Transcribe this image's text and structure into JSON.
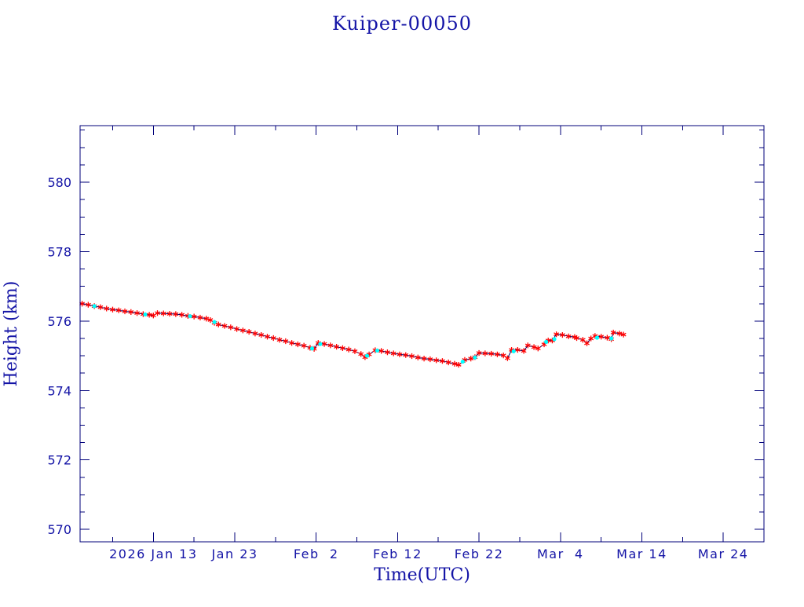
{
  "chart_data": {
    "type": "line",
    "title": "Kuiper-00050",
    "xlabel": "Time(UTC)",
    "ylabel": "Height (km)",
    "xlim": [
      "2026-01-04",
      "2026-03-29"
    ],
    "ylim": [
      569.64,
      581.63
    ],
    "xticks": [
      "2026-01-13",
      "2026-01-23",
      "2026-02-02",
      "2026-02-12",
      "2026-02-22",
      "2026-03-04",
      "2026-03-14",
      "2026-03-24"
    ],
    "xtick_labels": [
      "2026 Jan 13",
      "Jan 23",
      "Feb  2",
      "Feb 12",
      "Feb 22",
      "Mar  4",
      "Mar 14",
      "Mar 24"
    ],
    "yticks": [
      570,
      572,
      574,
      576,
      578,
      580
    ],
    "grid": false,
    "series": [
      {
        "marker": "asterisk",
        "color": "#ff0000",
        "line_color": "#000066",
        "x": [
          "2026-01-04T06:00",
          "2026-01-05T00:00",
          "2026-01-05T18:00",
          "2026-01-06T12:00",
          "2026-01-07T06:00",
          "2026-01-08T00:00",
          "2026-01-08T18:00",
          "2026-01-09T12:00",
          "2026-01-10T06:00",
          "2026-01-11T00:00",
          "2026-01-11T18:00",
          "2026-01-12T12:00",
          "2026-01-13T00:00",
          "2026-01-13T12:00",
          "2026-01-14T06:00",
          "2026-01-15T00:00",
          "2026-01-15T18:00",
          "2026-01-16T12:00",
          "2026-01-17T06:00",
          "2026-01-18T00:00",
          "2026-01-18T18:00",
          "2026-01-19T12:00",
          "2026-01-20T00:00",
          "2026-01-20T12:00",
          "2026-01-21T00:00",
          "2026-01-21T18:00",
          "2026-01-22T12:00",
          "2026-01-23T06:00",
          "2026-01-24T00:00",
          "2026-01-24T18:00",
          "2026-01-25T12:00",
          "2026-01-26T06:00",
          "2026-01-27T00:00",
          "2026-01-27T18:00",
          "2026-01-28T12:00",
          "2026-01-29T06:00",
          "2026-01-30T00:00",
          "2026-01-30T18:00",
          "2026-01-31T12:00",
          "2026-02-01T06:00",
          "2026-02-01T18:00",
          "2026-02-02T06:00",
          "2026-02-03T00:00",
          "2026-02-03T18:00",
          "2026-02-04T12:00",
          "2026-02-05T06:00",
          "2026-02-06T00:00",
          "2026-02-06T18:00",
          "2026-02-07T12:00",
          "2026-02-08T00:00",
          "2026-02-08T12:00",
          "2026-02-09T06:00",
          "2026-02-10T00:00",
          "2026-02-10T18:00",
          "2026-02-11T12:00",
          "2026-02-12T06:00",
          "2026-02-13T00:00",
          "2026-02-13T18:00",
          "2026-02-14T12:00",
          "2026-02-15T06:00",
          "2026-02-16T00:00",
          "2026-02-16T18:00",
          "2026-02-17T12:00",
          "2026-02-18T06:00",
          "2026-02-19T00:00",
          "2026-02-19T12:00",
          "2026-02-20T06:00",
          "2026-02-21T00:00",
          "2026-02-21T12:00",
          "2026-02-22T00:00",
          "2026-02-22T18:00",
          "2026-02-23T12:00",
          "2026-02-24T06:00",
          "2026-02-25T00:00",
          "2026-02-25T12:00",
          "2026-02-26T00:00",
          "2026-02-26T18:00",
          "2026-02-27T12:00",
          "2026-02-28T00:00",
          "2026-02-28T18:00",
          "2026-03-01T06:00",
          "2026-03-02T00:00",
          "2026-03-02T12:00",
          "2026-03-03T00:00",
          "2026-03-03T12:00",
          "2026-03-04T06:00",
          "2026-03-05T00:00",
          "2026-03-05T18:00",
          "2026-03-06T00:00",
          "2026-03-06T18:00",
          "2026-03-07T06:00",
          "2026-03-07T18:00",
          "2026-03-08T06:00",
          "2026-03-09T00:00",
          "2026-03-09T18:00",
          "2026-03-10T06:00",
          "2026-03-10T12:00",
          "2026-03-11T06:00",
          "2026-03-11T18:00"
        ],
        "y": [
          576.5,
          576.47,
          576.43,
          576.4,
          576.36,
          576.33,
          576.31,
          576.28,
          576.26,
          576.23,
          576.2,
          576.18,
          576.16,
          576.23,
          576.22,
          576.21,
          576.2,
          576.18,
          576.15,
          576.13,
          576.1,
          576.07,
          576.03,
          575.95,
          575.9,
          575.86,
          575.82,
          575.77,
          575.73,
          575.69,
          575.64,
          575.6,
          575.55,
          575.51,
          575.46,
          575.42,
          575.37,
          575.33,
          575.29,
          575.23,
          575.2,
          575.37,
          575.34,
          575.3,
          575.26,
          575.22,
          575.18,
          575.13,
          575.05,
          574.96,
          575.04,
          575.16,
          575.14,
          575.1,
          575.07,
          575.04,
          575.02,
          574.99,
          574.95,
          574.92,
          574.9,
          574.87,
          574.85,
          574.81,
          574.77,
          574.74,
          574.88,
          574.92,
          574.96,
          575.08,
          575.07,
          575.06,
          575.04,
          575.01,
          574.93,
          575.17,
          575.17,
          575.14,
          575.3,
          575.25,
          575.21,
          575.33,
          575.44,
          575.44,
          575.62,
          575.6,
          575.56,
          575.54,
          575.51,
          575.46,
          575.36,
          575.5,
          575.57,
          575.55,
          575.52,
          575.48,
          575.67,
          575.64,
          575.61
        ]
      },
      {
        "marker": "dot",
        "color": "#00ffff",
        "x": [
          "2026-01-05T18:00",
          "2026-01-12T00:00",
          "2026-01-17T12:00",
          "2026-01-20T12:00",
          "2026-02-01T12:00",
          "2026-02-02T12:00",
          "2026-02-08T06:00",
          "2026-02-09T12:00",
          "2026-02-20T00:00",
          "2026-02-21T12:00",
          "2026-02-26T06:00",
          "2026-03-02T06:00",
          "2026-03-03T06:00",
          "2026-03-08T12:00",
          "2026-03-10T06:00"
        ],
        "y": [
          576.43,
          576.19,
          576.14,
          575.97,
          575.21,
          575.34,
          575.0,
          575.15,
          574.83,
          574.95,
          575.13,
          575.4,
          575.48,
          575.52,
          575.5
        ]
      }
    ]
  },
  "colors": {
    "text": "#1414a6",
    "frame": "#00007a",
    "background": "#ffffff"
  }
}
